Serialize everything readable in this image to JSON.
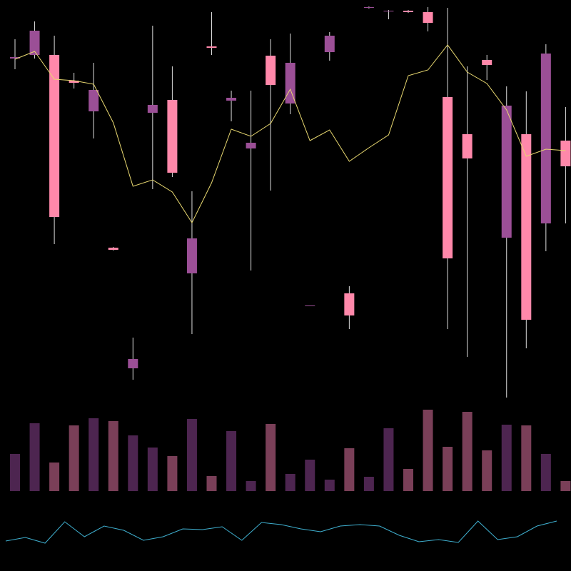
{
  "chart_data": {
    "type": "candlestick",
    "open": [
      518,
      523,
      523,
      487,
      444,
      253,
      84,
      442,
      460,
      217,
      535,
      459,
      392,
      522,
      455,
      171,
      527,
      189,
      589,
      584,
      585,
      583,
      464,
      412,
      516,
      267,
      412,
      287,
      403
    ],
    "high": [
      545,
      570,
      550,
      498,
      512,
      254,
      127,
      564,
      507,
      332,
      583,
      473,
      473,
      545,
      553,
      172,
      555,
      199,
      591,
      586,
      586,
      590,
      589,
      507,
      523,
      479,
      472,
      538,
      450
    ],
    "low": [
      503,
      518,
      258,
      476,
      406,
      249,
      68,
      335,
      352,
      132,
      523,
      430,
      221,
      333,
      440,
      171,
      515,
      139,
      588,
      573,
      582,
      556,
      139,
      100,
      488,
      43,
      112,
      248,
      287
    ],
    "close": [
      520,
      557,
      296,
      484,
      474,
      250,
      97,
      453,
      358,
      266,
      533,
      463,
      400,
      481,
      512,
      172,
      550,
      158,
      590,
      585,
      583,
      568,
      238,
      378,
      509,
      452,
      152,
      525,
      367
    ],
    "moving_average": [
      517,
      528,
      489,
      487,
      482,
      428,
      339,
      348,
      331,
      288,
      344,
      419,
      409,
      427,
      475,
      403,
      418,
      374,
      393,
      411,
      494,
      502,
      537,
      499,
      483,
      446,
      381,
      391,
      389
    ],
    "volume": [
      52,
      95,
      40,
      92,
      102,
      98,
      78,
      61,
      49,
      101,
      21,
      84,
      14,
      94,
      24,
      44,
      16,
      60,
      20,
      88,
      31,
      114,
      62,
      111,
      57,
      93,
      92,
      52,
      14
    ],
    "indicator": [
      42,
      47,
      39,
      69,
      48,
      63,
      57,
      43,
      48,
      59,
      58,
      62,
      43,
      68,
      65,
      59,
      55,
      63,
      65,
      63,
      50,
      41,
      44,
      40,
      70,
      44,
      48,
      63,
      70
    ],
    "ylim": [
      0,
      600
    ],
    "volume_lim": [
      0,
      120
    ],
    "indicator_lim": [
      0,
      100
    ],
    "up_color": "#9b4f96",
    "down_color": "#ff88aa",
    "volume_up_color": "#4d2550",
    "volume_down_color": "#7a3f58",
    "ma_color": "#e8d870",
    "indicator_color": "#3fb0d0"
  }
}
